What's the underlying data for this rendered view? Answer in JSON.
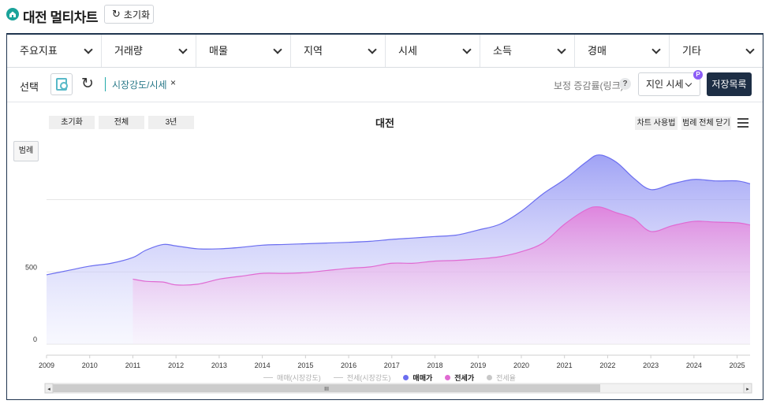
{
  "app": {
    "title": "대전 멀티차트",
    "reset_label": "초기화"
  },
  "menu": [
    {
      "label": "주요지표"
    },
    {
      "label": "거래량"
    },
    {
      "label": "매물"
    },
    {
      "label": "지역"
    },
    {
      "label": "시세"
    },
    {
      "label": "소득"
    },
    {
      "label": "경매"
    },
    {
      "label": "기타"
    }
  ],
  "toolbar": {
    "select_label": "선택",
    "chip_label": "시장강도/시세",
    "chip_remove": "×",
    "rate_label": "보정 증감률(링크)",
    "help": "?",
    "select_value": "지인 시세",
    "badge": "P",
    "save_list_label": "저장목록"
  },
  "chart_controls": {
    "reset": "초기화",
    "all": "전체",
    "three_years": "3년",
    "legend_toggle": "범례",
    "howto": "차트 사용법",
    "close_legend": "범례 전체 닫기"
  },
  "colors": {
    "sale": "#6b6ef0",
    "jeonse": "#e06ad2",
    "jeonse_rate": "#c8c8c8",
    "grid": "#e6e6e6"
  },
  "chart_data": {
    "type": "area",
    "title": "대전",
    "xlabel": "",
    "ylabel": "",
    "x_ticks": [
      "2009",
      "2010",
      "2011",
      "2012",
      "2013",
      "2014",
      "2015",
      "2016",
      "2017",
      "2018",
      "2019",
      "2020",
      "2021",
      "2022",
      "2023",
      "2024",
      "2025"
    ],
    "y_ticks": [
      0,
      500
    ],
    "ylim": [
      0,
      1450
    ],
    "grid": true,
    "legend_position": "bottom",
    "series": [
      {
        "name": "매매가",
        "color": "#6b6ef0",
        "points": [
          [
            2009.0,
            480
          ],
          [
            2009.5,
            510
          ],
          [
            2010.0,
            540
          ],
          [
            2010.5,
            560
          ],
          [
            2011.0,
            600
          ],
          [
            2011.3,
            650
          ],
          [
            2011.7,
            690
          ],
          [
            2012.0,
            680
          ],
          [
            2012.5,
            660
          ],
          [
            2013.0,
            660
          ],
          [
            2013.5,
            670
          ],
          [
            2014.0,
            685
          ],
          [
            2014.5,
            690
          ],
          [
            2015.0,
            695
          ],
          [
            2015.5,
            700
          ],
          [
            2016.0,
            705
          ],
          [
            2016.5,
            712
          ],
          [
            2017.0,
            725
          ],
          [
            2017.5,
            735
          ],
          [
            2018.0,
            745
          ],
          [
            2018.5,
            755
          ],
          [
            2019.0,
            790
          ],
          [
            2019.5,
            830
          ],
          [
            2020.0,
            920
          ],
          [
            2020.5,
            1040
          ],
          [
            2021.0,
            1140
          ],
          [
            2021.5,
            1260
          ],
          [
            2021.8,
            1310
          ],
          [
            2022.2,
            1260
          ],
          [
            2022.6,
            1150
          ],
          [
            2023.0,
            1070
          ],
          [
            2023.5,
            1110
          ],
          [
            2024.0,
            1140
          ],
          [
            2024.5,
            1130
          ],
          [
            2025.0,
            1130
          ],
          [
            2025.3,
            1110
          ]
        ]
      },
      {
        "name": "전세가",
        "color": "#e06ad2",
        "points": [
          [
            2011.0,
            450
          ],
          [
            2011.3,
            435
          ],
          [
            2011.7,
            430
          ],
          [
            2012.0,
            410
          ],
          [
            2012.5,
            415
          ],
          [
            2013.0,
            450
          ],
          [
            2013.5,
            470
          ],
          [
            2014.0,
            490
          ],
          [
            2014.5,
            490
          ],
          [
            2015.0,
            495
          ],
          [
            2015.5,
            510
          ],
          [
            2016.0,
            525
          ],
          [
            2016.5,
            535
          ],
          [
            2017.0,
            560
          ],
          [
            2017.5,
            560
          ],
          [
            2018.0,
            575
          ],
          [
            2018.5,
            580
          ],
          [
            2019.0,
            590
          ],
          [
            2019.5,
            605
          ],
          [
            2020.0,
            640
          ],
          [
            2020.5,
            700
          ],
          [
            2021.0,
            830
          ],
          [
            2021.5,
            930
          ],
          [
            2021.8,
            950
          ],
          [
            2022.2,
            910
          ],
          [
            2022.6,
            870
          ],
          [
            2023.0,
            780
          ],
          [
            2023.5,
            820
          ],
          [
            2024.0,
            850
          ],
          [
            2024.5,
            845
          ],
          [
            2025.0,
            840
          ],
          [
            2025.3,
            825
          ]
        ]
      }
    ],
    "legend": [
      {
        "label": "매매(시장강도)",
        "marker": "line",
        "active": false
      },
      {
        "label": "전세(시장강도)",
        "marker": "line",
        "active": false
      },
      {
        "label": "매매가",
        "marker": "dot",
        "active": true
      },
      {
        "label": "전세가",
        "marker": "dot",
        "active": true
      },
      {
        "label": "전세율",
        "marker": "dot",
        "active": false
      }
    ]
  },
  "scrollbar": {
    "grip": "III"
  }
}
